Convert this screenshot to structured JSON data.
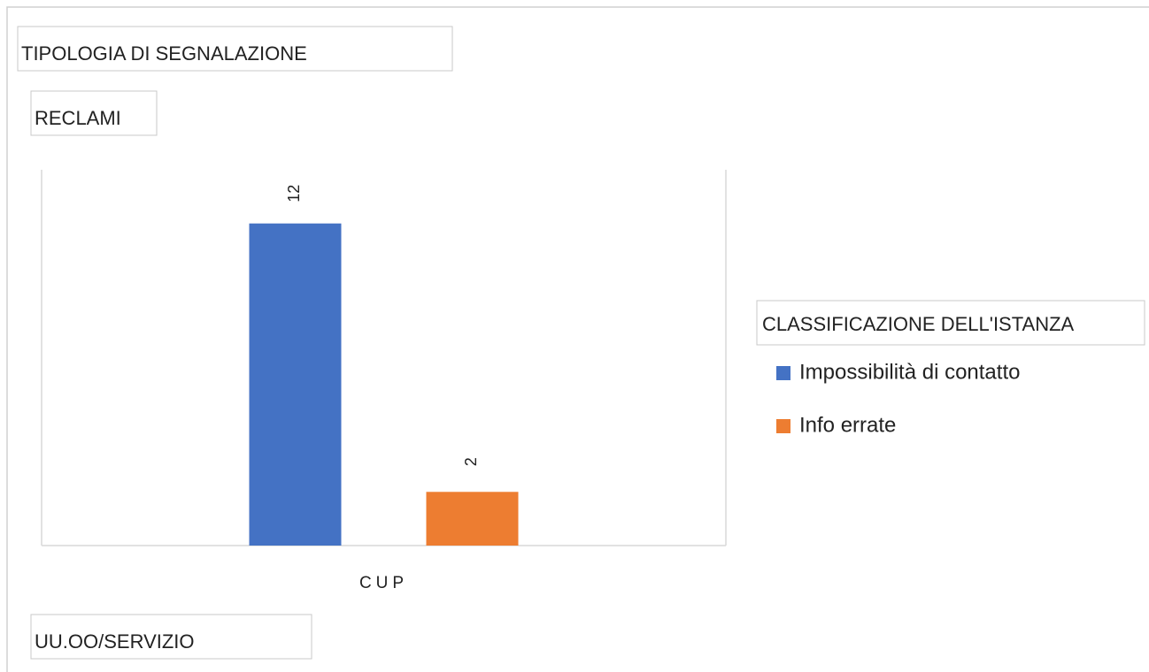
{
  "chart_data": {
    "type": "bar",
    "title": "TIPOLOGIA DI SEGNALAZIONE",
    "subtitle": "RECLAMI",
    "x_label": "UU.OO/SERVIZIO",
    "legend_title": "CLASSIFICAZIONE DELL'ISTANZA",
    "legend": "right",
    "categories": [
      "CUP"
    ],
    "series": [
      {
        "name": "Impossibilità di contatto",
        "color": "#4472c4",
        "values": [
          12
        ]
      },
      {
        "name": "Info errate",
        "color": "#ed7d31",
        "values": [
          2
        ]
      }
    ],
    "ylim": [
      0,
      14
    ]
  }
}
